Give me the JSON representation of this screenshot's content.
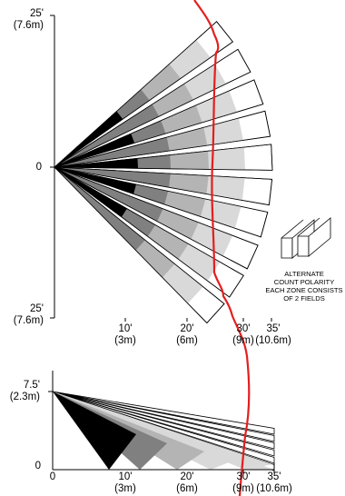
{
  "top_view": {
    "y_labels": [
      {
        "primary": "25'",
        "secondary": "(7.6m)"
      },
      {
        "primary": "0",
        "secondary": ""
      },
      {
        "primary": "25'",
        "secondary": "(7.6m)"
      }
    ],
    "x_ticks": [
      {
        "primary": "10'",
        "secondary": "(3m)"
      },
      {
        "primary": "20'",
        "secondary": "(6m)"
      },
      {
        "primary": "30'",
        "secondary": "(9m)"
      },
      {
        "primary": "35'",
        "secondary": "(10.6m)"
      }
    ],
    "zone_count": 10
  },
  "side_view": {
    "y_labels": [
      {
        "primary": "7.5'",
        "secondary": "(2.3m)"
      },
      {
        "primary": "0",
        "secondary": ""
      }
    ],
    "x_ticks": [
      {
        "primary": "0",
        "secondary": ""
      },
      {
        "primary": "10'",
        "secondary": "(3m)"
      },
      {
        "primary": "20'",
        "secondary": "(6m)"
      },
      {
        "primary": "30'",
        "secondary": "(9m)"
      },
      {
        "primary": "35'",
        "secondary": "(10.6m)"
      }
    ]
  },
  "legend": {
    "lines": [
      "ALTERNATE",
      "COUNT POLARITY",
      "EACH ZONE CONSISTS",
      "OF 2 FIELDS"
    ]
  },
  "colors": {
    "path": "#e41e1e",
    "near": "#000000",
    "dark": "#808080",
    "mid": "#b4b4b4",
    "light": "#d9d9d9",
    "outline": "#000000"
  }
}
